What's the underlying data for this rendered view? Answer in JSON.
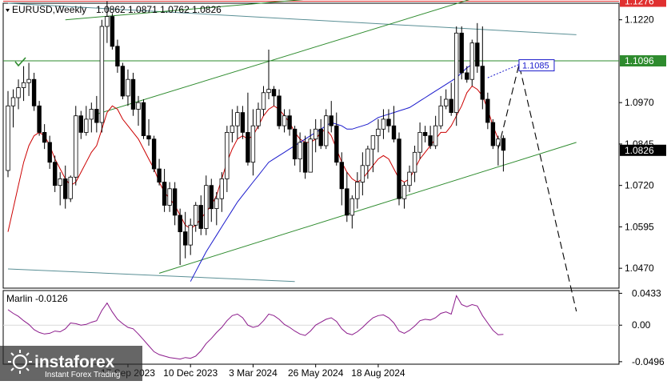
{
  "main_header": {
    "symbol_timeframe": "EURUSD,Weekly",
    "ohlc": "1.0862 1.0871 1.0762 1.0826"
  },
  "indicator_header": "Marlin -0.0126",
  "branding": {
    "logo_text": "instaforex",
    "tagline": "Instant Forex Trading"
  },
  "colors": {
    "bull": "#ffffff",
    "bear": "#000000",
    "outline": "#000000",
    "red_ma": "#cc0000",
    "blue_ma": "#1a1acc",
    "channel": "#2e8b2e",
    "long_trend": "#5a8f95",
    "marlin": "#8b1a8b",
    "resistance_line": "#e03030",
    "support_line": "#2e8b2e",
    "forecast": "#000000",
    "target_label_border": "#1a1acc"
  },
  "chart_data": [
    {
      "type": "candlestick",
      "y_ticks": [
        "1.1220",
        "1.0970",
        "1.0845",
        "1.0720",
        "1.0595",
        "1.0470"
      ],
      "y_range": [
        1.041,
        1.127
      ],
      "x_ticks": [
        "17 Sep 2023",
        "10 Dec 2023",
        "3 Mar 2024",
        "26 May 2024",
        "18 Aug 2024"
      ],
      "x_tick_index": [
        23,
        35,
        47,
        59,
        71
      ],
      "ohlc": [
        [
          1.0765,
          1.1005,
          1.0745,
          1.096
        ],
        [
          1.096,
          1.101,
          1.0895,
          1.0985
        ],
        [
          1.0985,
          1.104,
          1.095,
          1.1015
        ],
        [
          1.1015,
          1.108,
          1.0975,
          1.103
        ],
        [
          1.103,
          1.109,
          1.099,
          1.104
        ],
        [
          1.104,
          1.106,
          1.0945,
          1.096
        ],
        [
          1.096,
          1.0975,
          1.087,
          1.088
        ],
        [
          1.088,
          1.0905,
          1.083,
          1.085
        ],
        [
          1.085,
          1.087,
          1.077,
          1.079
        ],
        [
          1.079,
          1.081,
          1.07,
          1.072
        ],
        [
          1.072,
          1.076,
          1.066,
          1.074
        ],
        [
          1.074,
          1.078,
          1.065,
          1.068
        ],
        [
          1.068,
          1.075,
          1.067,
          1.0745
        ],
        [
          1.0745,
          1.096,
          1.072,
          1.093
        ],
        [
          1.093,
          1.0945,
          1.086,
          1.088
        ],
        [
          1.088,
          1.096,
          1.087,
          1.092
        ],
        [
          1.092,
          1.097,
          1.088,
          1.095
        ],
        [
          1.095,
          1.099,
          1.088,
          1.091
        ],
        [
          1.091,
          1.122,
          1.088,
          1.12
        ],
        [
          1.12,
          1.1276,
          1.115,
          1.123
        ],
        [
          1.123,
          1.124,
          1.113,
          1.114
        ],
        [
          1.114,
          1.116,
          1.106,
          1.108
        ],
        [
          1.108,
          1.109,
          1.098,
          1.099
        ],
        [
          1.099,
          1.107,
          1.096,
          1.104
        ],
        [
          1.104,
          1.106,
          1.093,
          1.095
        ],
        [
          1.095,
          1.099,
          1.09,
          1.097
        ],
        [
          1.097,
          1.098,
          1.086,
          1.087
        ],
        [
          1.087,
          1.092,
          1.084,
          1.086
        ],
        [
          1.086,
          1.087,
          1.076,
          1.077
        ],
        [
          1.077,
          1.08,
          1.072,
          1.073
        ],
        [
          1.073,
          1.077,
          1.064,
          1.066
        ],
        [
          1.066,
          1.073,
          1.064,
          1.071
        ],
        [
          1.071,
          1.073,
          1.06,
          1.063
        ],
        [
          1.063,
          1.065,
          1.048,
          1.058
        ],
        [
          1.058,
          1.064,
          1.05,
          1.054
        ],
        [
          1.054,
          1.062,
          1.051,
          1.06
        ],
        [
          1.06,
          1.067,
          1.058,
          1.066
        ],
        [
          1.066,
          1.069,
          1.057,
          1.059
        ],
        [
          1.059,
          1.075,
          1.057,
          1.072
        ],
        [
          1.072,
          1.074,
          1.061,
          1.065
        ],
        [
          1.065,
          1.07,
          1.06,
          1.068
        ],
        [
          1.068,
          1.076,
          1.064,
          1.074
        ],
        [
          1.074,
          1.09,
          1.07,
          1.088
        ],
        [
          1.088,
          1.095,
          1.085,
          1.09
        ],
        [
          1.09,
          1.096,
          1.086,
          1.094
        ],
        [
          1.094,
          1.096,
          1.086,
          1.088
        ],
        [
          1.088,
          1.1,
          1.078,
          1.079
        ],
        [
          1.079,
          1.095,
          1.075,
          1.09
        ],
        [
          1.09,
          1.097,
          1.089,
          1.095
        ],
        [
          1.095,
          1.102,
          1.093,
          1.1
        ],
        [
          1.1,
          1.113,
          1.098,
          1.101
        ],
        [
          1.101,
          1.102,
          1.096,
          1.099
        ],
        [
          1.099,
          1.101,
          1.089,
          1.09
        ],
        [
          1.09,
          1.095,
          1.088,
          1.093
        ],
        [
          1.093,
          1.095,
          1.087,
          1.089
        ],
        [
          1.089,
          1.09,
          1.078,
          1.08
        ],
        [
          1.08,
          1.088,
          1.076,
          1.085
        ],
        [
          1.085,
          1.087,
          1.074,
          1.076
        ],
        [
          1.076,
          1.089,
          1.076,
          1.086
        ],
        [
          1.086,
          1.092,
          1.082,
          1.089
        ],
        [
          1.089,
          1.092,
          1.083,
          1.084
        ],
        [
          1.084,
          1.095,
          1.083,
          1.093
        ],
        [
          1.093,
          1.0975,
          1.088,
          1.09
        ],
        [
          1.09,
          1.094,
          1.078,
          1.079
        ],
        [
          1.079,
          1.082,
          1.066,
          1.071
        ],
        [
          1.071,
          1.076,
          1.061,
          1.063
        ],
        [
          1.063,
          1.069,
          1.059,
          1.068
        ],
        [
          1.068,
          1.076,
          1.065,
          1.073
        ],
        [
          1.073,
          1.082,
          1.069,
          1.078
        ],
        [
          1.078,
          1.084,
          1.074,
          1.083
        ],
        [
          1.083,
          1.087,
          1.076,
          1.087
        ],
        [
          1.087,
          1.092,
          1.082,
          1.089
        ],
        [
          1.089,
          1.095,
          1.086,
          1.092
        ],
        [
          1.092,
          1.095,
          1.088,
          1.09
        ],
        [
          1.09,
          1.096,
          1.085,
          1.086
        ],
        [
          1.086,
          1.088,
          1.066,
          1.068
        ],
        [
          1.068,
          1.073,
          1.065,
          1.072
        ],
        [
          1.072,
          1.078,
          1.07,
          1.076
        ],
        [
          1.076,
          1.084,
          1.073,
          1.082
        ],
        [
          1.082,
          1.091,
          1.08,
          1.088
        ],
        [
          1.088,
          1.09,
          1.085,
          1.087
        ],
        [
          1.087,
          1.09,
          1.083,
          1.084
        ],
        [
          1.084,
          1.093,
          1.083,
          1.09
        ],
        [
          1.09,
          1.099,
          1.089,
          1.096
        ],
        [
          1.096,
          1.101,
          1.095,
          1.098
        ],
        [
          1.098,
          1.103,
          1.093,
          1.094
        ],
        [
          1.094,
          1.12,
          1.09,
          1.118
        ],
        [
          1.118,
          1.12,
          1.104,
          1.106
        ],
        [
          1.106,
          1.108,
          1.103,
          1.104
        ],
        [
          1.104,
          1.116,
          1.102,
          1.115
        ],
        [
          1.115,
          1.121,
          1.106,
          1.108
        ],
        [
          1.108,
          1.12,
          1.095,
          1.098
        ],
        [
          1.098,
          1.1,
          1.089,
          1.091
        ],
        [
          1.091,
          1.092,
          1.083,
          1.084
        ],
        [
          1.084,
          1.087,
          1.078,
          1.086
        ],
        [
          1.0862,
          1.0871,
          1.0762,
          1.0826
        ]
      ],
      "red_ma": [
        1.058,
        1.065,
        1.072,
        1.079,
        1.084,
        1.087,
        1.088,
        1.087,
        1.084,
        1.08,
        1.077,
        1.074,
        1.072,
        1.073,
        1.076,
        1.079,
        1.082,
        1.084,
        1.089,
        1.094,
        1.096,
        1.095,
        1.092,
        1.09,
        1.088,
        1.086,
        1.083,
        1.08,
        1.077,
        1.073,
        1.07,
        1.068,
        1.066,
        1.063,
        1.06,
        1.059,
        1.06,
        1.062,
        1.064,
        1.066,
        1.069,
        1.074,
        1.079,
        1.083,
        1.086,
        1.087,
        1.086,
        1.087,
        1.09,
        1.093,
        1.095,
        1.096,
        1.095,
        1.093,
        1.091,
        1.088,
        1.086,
        1.085,
        1.085,
        1.086,
        1.088,
        1.089,
        1.087,
        1.083,
        1.079,
        1.076,
        1.074,
        1.073,
        1.074,
        1.076,
        1.078,
        1.08,
        1.081,
        1.08,
        1.077,
        1.074,
        1.073,
        1.074,
        1.077,
        1.08,
        1.082,
        1.084,
        1.086,
        1.088,
        1.088,
        1.09,
        1.093,
        1.096,
        1.1,
        1.102,
        1.101,
        1.099,
        1.095,
        1.09,
        1.086
      ],
      "blue_ma": [
        null,
        null,
        null,
        null,
        null,
        null,
        null,
        null,
        null,
        null,
        null,
        null,
        null,
        null,
        null,
        null,
        null,
        null,
        null,
        null,
        null,
        null,
        null,
        null,
        null,
        null,
        null,
        null,
        null,
        null,
        null,
        null,
        null,
        null,
        null,
        1.043,
        1.046,
        1.049,
        1.052,
        1.0545,
        1.057,
        1.0595,
        1.062,
        1.0645,
        1.067,
        1.069,
        1.071,
        1.073,
        1.075,
        1.077,
        1.079,
        1.08,
        1.081,
        1.082,
        1.083,
        1.084,
        1.085,
        1.086,
        1.087,
        1.088,
        1.089,
        1.09,
        1.091,
        1.0905,
        1.09,
        1.089,
        1.089,
        1.0895,
        1.09,
        1.0905,
        1.0915,
        1.0925,
        1.093,
        1.0935,
        1.094,
        1.0945,
        1.095,
        1.0955,
        1.0965,
        1.0975,
        1.0985,
        1.0995,
        1.1005,
        1.1015,
        1.1025,
        1.1035,
        1.1045,
        1.106,
        1.1075,
        1.1085
      ],
      "blue_ma_projection": [
        [
          92,
          1.1045
        ],
        [
          98,
          1.1085
        ]
      ],
      "levels": [
        {
          "label": "1.1276",
          "value": 1.1276
        },
        {
          "label": "1.1096",
          "value": 1.1096
        },
        {
          "label": "1.0826",
          "value": 1.0826
        }
      ],
      "target": {
        "label": "1.1085",
        "value": 1.1085,
        "index": 98
      },
      "forecast_path": [
        [
          94,
          1.083
        ],
        [
          98,
          1.1085
        ],
        [
          109,
          1.034
        ]
      ],
      "channel_upper": [
        [
          11,
          1.122
        ],
        [
          101,
          1.134
        ]
      ],
      "channel_mid": [
        [
          17,
          1.0935
        ],
        [
          109,
          1.138
        ]
      ],
      "channel_lower": [
        [
          29,
          1.0455
        ],
        [
          109,
          1.085
        ]
      ],
      "long_trend_upper": [
        [
          0,
          1.127
        ],
        [
          109,
          1.1175
        ]
      ],
      "long_trend_lower": [
        [
          0,
          1.0468
        ],
        [
          55,
          1.043
        ]
      ]
    },
    {
      "type": "line",
      "title": "Marlin -0.0126",
      "y_ticks": [
        "0.0433",
        "0.00",
        "-0.0496"
      ],
      "y_range": [
        -0.053,
        0.047
      ],
      "values": [
        0.021,
        0.016,
        0.012,
        0.006,
        0.001,
        -0.006,
        -0.01,
        -0.012,
        -0.011,
        -0.008,
        -0.009,
        -0.005,
        0.003,
        0.002,
        0.0,
        0.001,
        0.004,
        0.006,
        0.02,
        0.03,
        0.018,
        0.008,
        0.002,
        -0.003,
        -0.005,
        -0.012,
        -0.02,
        -0.028,
        -0.036,
        -0.04,
        -0.042,
        -0.044,
        -0.045,
        -0.046,
        -0.044,
        -0.045,
        -0.042,
        -0.035,
        -0.025,
        -0.018,
        -0.01,
        -0.003,
        0.006,
        0.013,
        0.015,
        0.01,
        0.0,
        -0.003,
        -0.001,
        0.006,
        0.015,
        0.013,
        0.008,
        0.001,
        -0.003,
        -0.008,
        -0.012,
        -0.014,
        -0.008,
        0.0,
        0.004,
        0.008,
        0.01,
        0.005,
        -0.005,
        -0.011,
        -0.013,
        -0.009,
        -0.003,
        0.004,
        0.01,
        0.013,
        0.014,
        0.01,
        0.003,
        -0.008,
        -0.011,
        -0.007,
        -0.001,
        0.006,
        0.008,
        0.007,
        0.01,
        0.016,
        0.018,
        0.015,
        0.04,
        0.028,
        0.025,
        0.028,
        0.026,
        0.013,
        0.003,
        -0.007,
        -0.013,
        -0.0126
      ]
    }
  ]
}
